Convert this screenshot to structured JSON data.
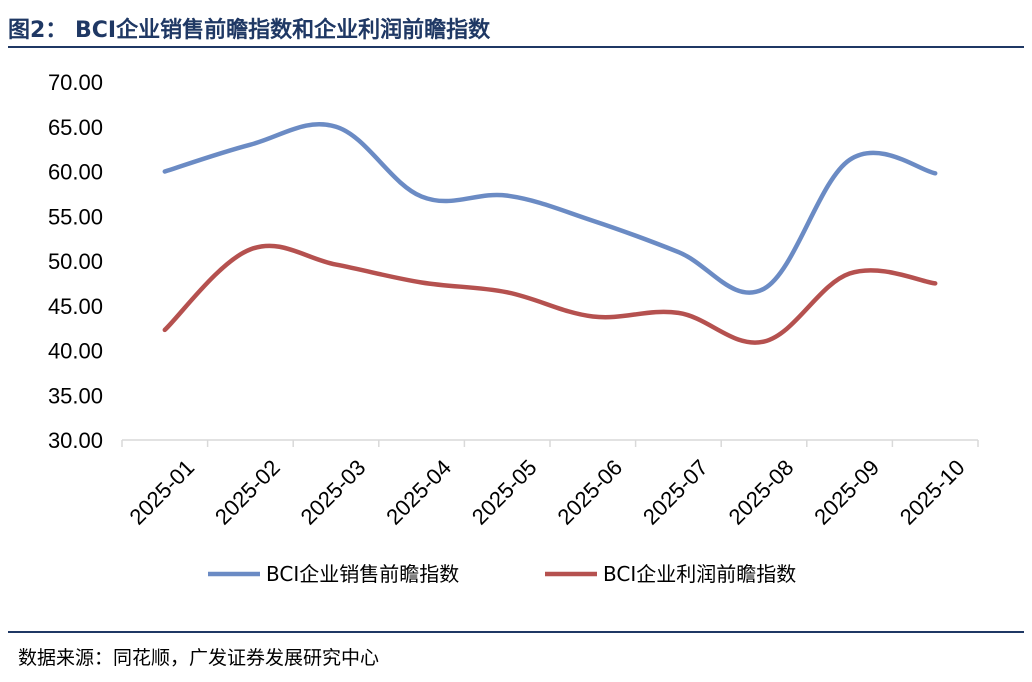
{
  "header": {
    "title": "图2：  BCI企业销售前瞻指数和企业利润前瞻指数"
  },
  "footer": {
    "source": "数据来源：同花顺，广发证券发展研究中心"
  },
  "chart_data": {
    "type": "line",
    "title": "",
    "xlabel": "",
    "ylabel": "",
    "categories": [
      "2025-01",
      "2025-02",
      "2025-03",
      "2025-04",
      "2025-05",
      "2025-06",
      "2025-07",
      "2025-08",
      "2025-09",
      "2025-10"
    ],
    "ylim": [
      30,
      70
    ],
    "yticks": [
      "30.00",
      "35.00",
      "40.00",
      "45.00",
      "50.00",
      "55.00",
      "60.00",
      "65.00",
      "70.00"
    ],
    "grid": false,
    "legend": "bottom",
    "series": [
      {
        "name": "BCI企业销售前瞻指数",
        "color": "#6b8bc4",
        "values": [
          60.0,
          63.0,
          65.0,
          57.2,
          57.3,
          54.5,
          51.0,
          46.9,
          61.3,
          59.8
        ]
      },
      {
        "name": "BCI企业利润前瞻指数",
        "color": "#b5514f",
        "values": [
          42.3,
          51.3,
          49.6,
          47.6,
          46.5,
          43.8,
          44.2,
          41.0,
          48.6,
          47.5
        ]
      }
    ]
  }
}
